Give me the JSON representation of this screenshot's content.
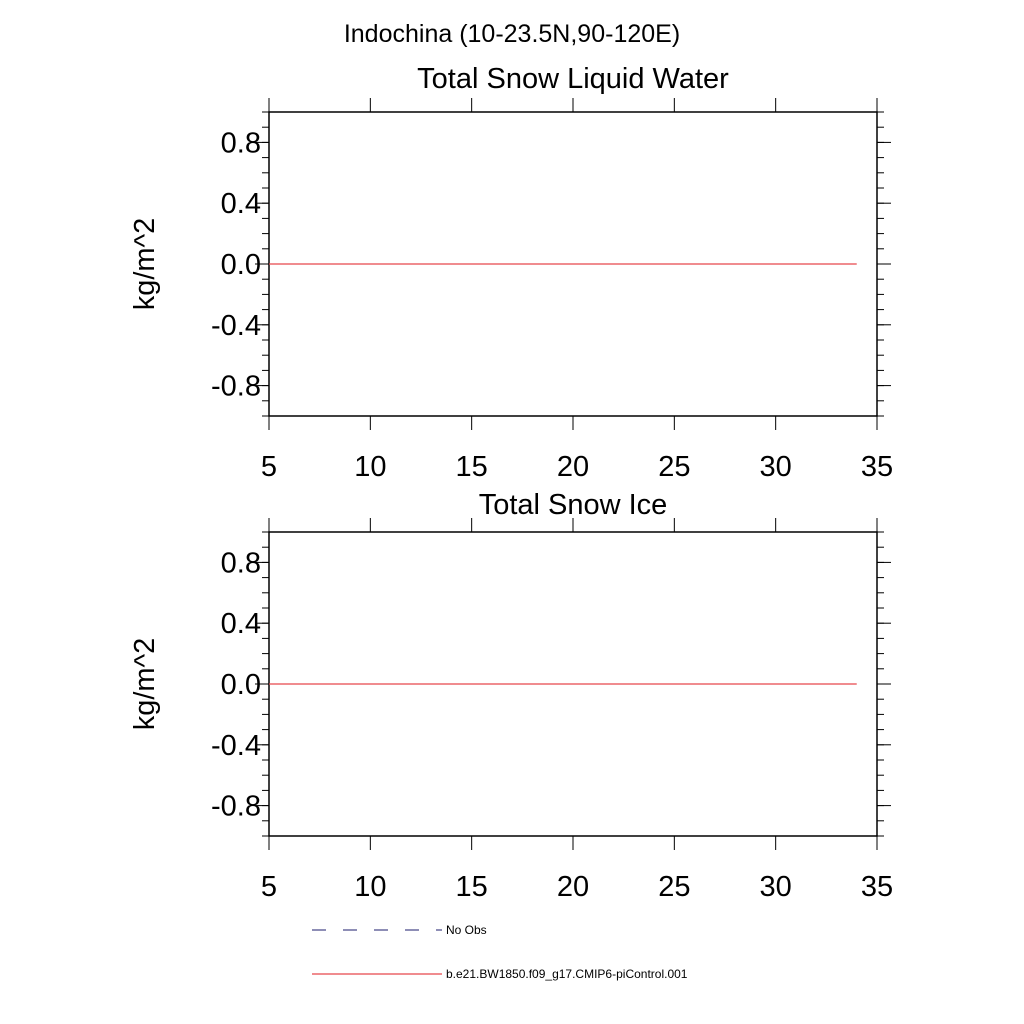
{
  "title": "Indochina (10-23.5N,90-120E)",
  "chart_data": [
    {
      "type": "line",
      "title": "Total Snow Liquid Water",
      "xlabel": "",
      "ylabel": "kg/m^2",
      "xlim": [
        5,
        35
      ],
      "ylim": [
        -1.0,
        1.0
      ],
      "x_ticks": [
        5,
        10,
        15,
        20,
        25,
        30,
        35
      ],
      "y_ticks": [
        -0.8,
        -0.4,
        0.0,
        0.4,
        0.8
      ],
      "x_tick_labels": [
        "5",
        "10",
        "15",
        "20",
        "25",
        "30",
        "35"
      ],
      "y_tick_labels": [
        "-0.8",
        "-0.4",
        "0.0",
        "0.4",
        "0.8"
      ],
      "series": [
        {
          "name": "b.e21.BW1850.f09_g17.CMIP6-piControl.001",
          "color": "#e8474c",
          "x": [
            5,
            34
          ],
          "y": [
            0.0,
            0.0
          ]
        }
      ]
    },
    {
      "type": "line",
      "title": "Total Snow Ice",
      "xlabel": "",
      "ylabel": "kg/m^2",
      "xlim": [
        5,
        35
      ],
      "ylim": [
        -1.0,
        1.0
      ],
      "x_ticks": [
        5,
        10,
        15,
        20,
        25,
        30,
        35
      ],
      "y_ticks": [
        -0.8,
        -0.4,
        0.0,
        0.4,
        0.8
      ],
      "x_tick_labels": [
        "5",
        "10",
        "15",
        "20",
        "25",
        "30",
        "35"
      ],
      "y_tick_labels": [
        "-0.8",
        "-0.4",
        "0.0",
        "0.4",
        "0.8"
      ],
      "series": [
        {
          "name": "b.e21.BW1850.f09_g17.CMIP6-piControl.001",
          "color": "#e8474c",
          "x": [
            5,
            34
          ],
          "y": [
            0.0,
            0.0
          ]
        }
      ]
    }
  ],
  "legend": [
    {
      "label": "No Obs",
      "style": "dashed",
      "color": "#4a4a8a"
    },
    {
      "label": "b.e21.BW1850.f09_g17.CMIP6-piControl.001",
      "style": "solid",
      "color": "#e8474c"
    }
  ]
}
